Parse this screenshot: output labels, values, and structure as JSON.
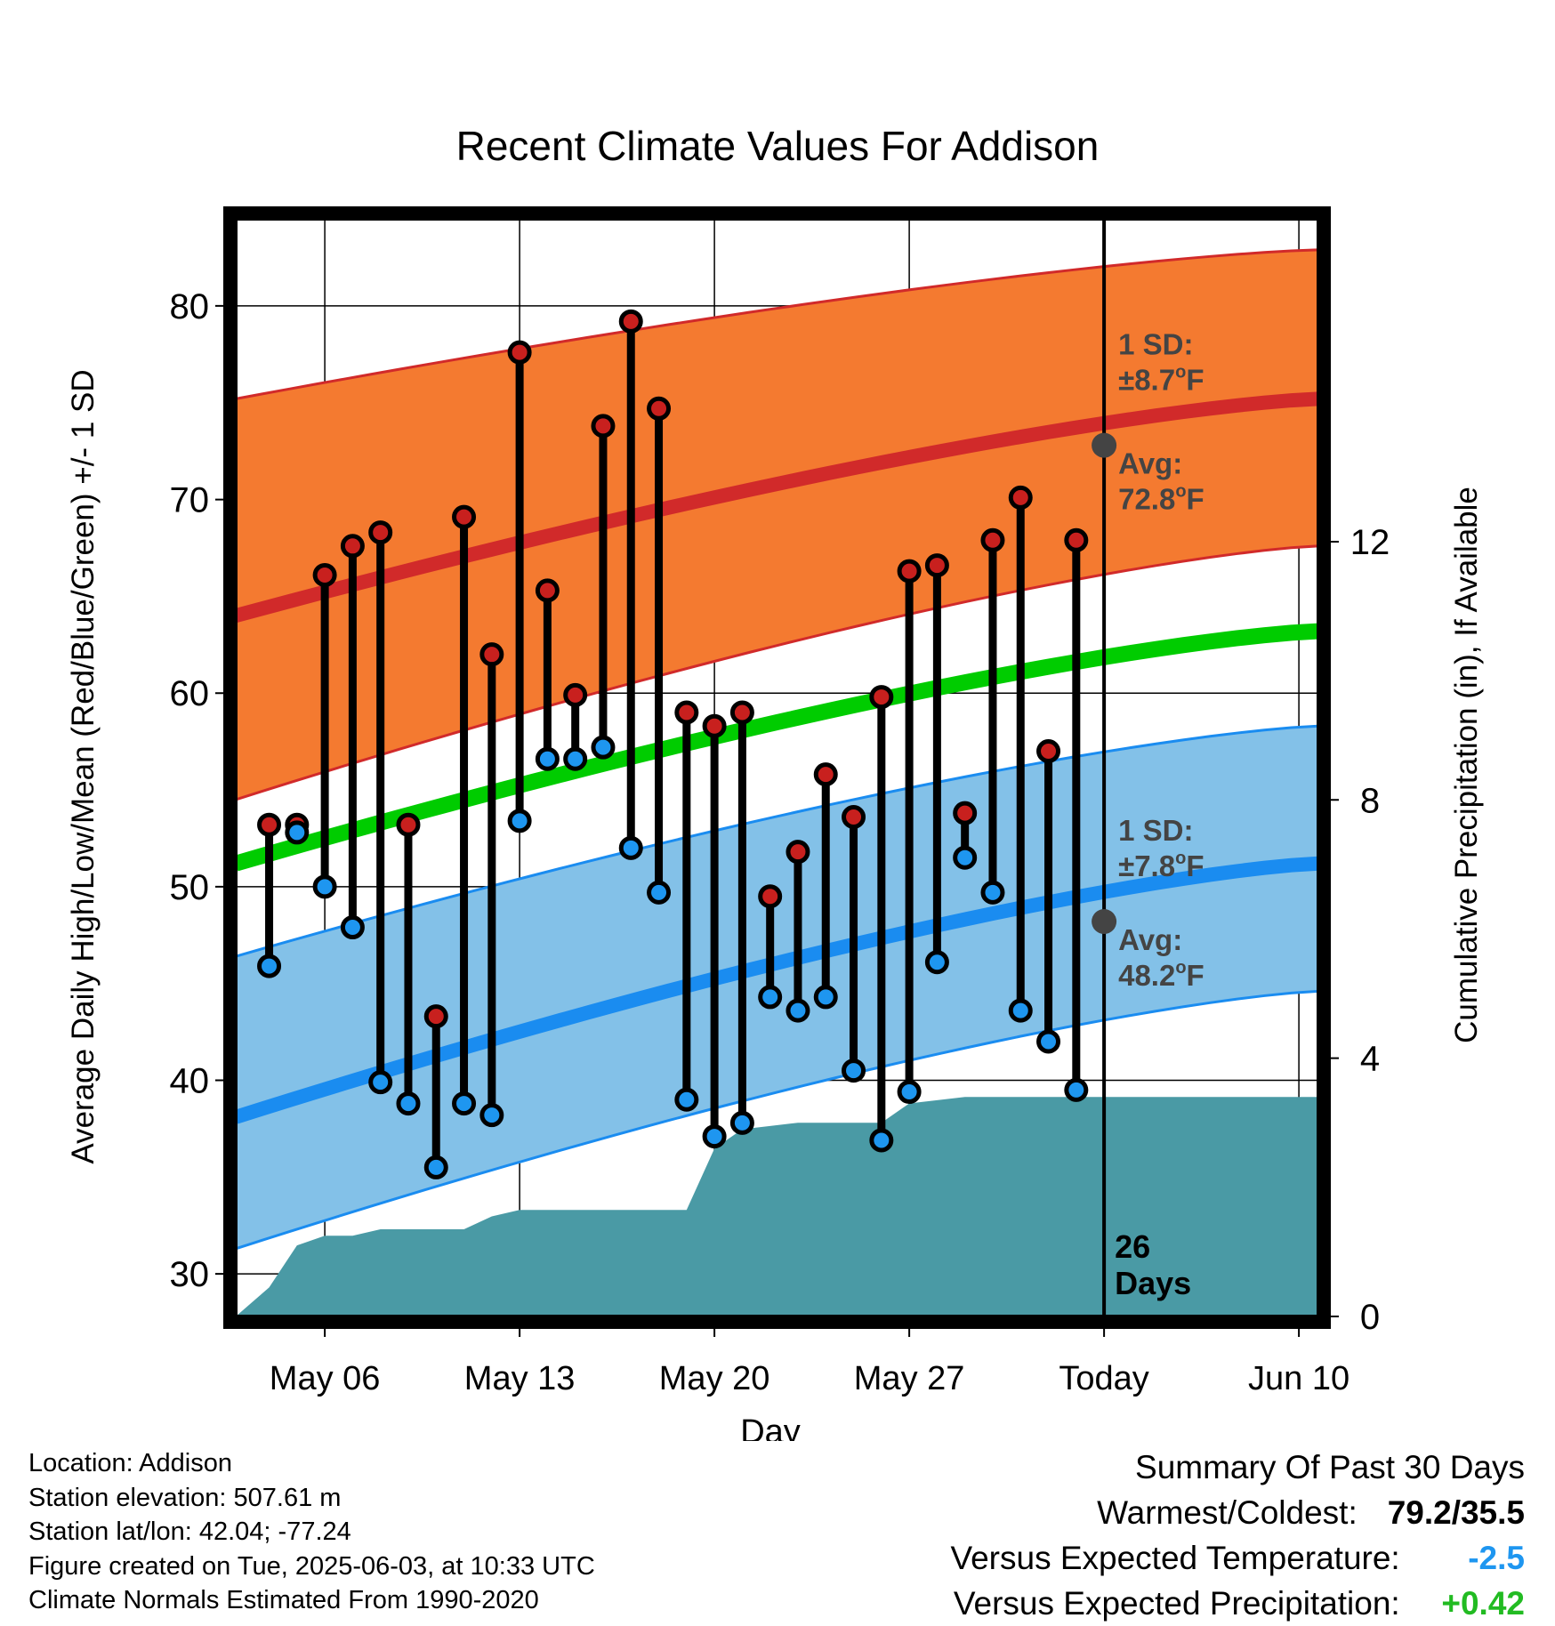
{
  "chart_data": {
    "type": "line",
    "title": "Recent Climate Values For Addison",
    "xlabel": "Day",
    "ylabel": "Average Daily High/Low/Mean (Red/Blue/Green) +/- 1 SD",
    "y2label": "Cumulative Precipitation (in), If Available",
    "ylim": [
      27.8,
      84.5
    ],
    "y2lim": [
      0,
      17
    ],
    "xlim": [
      2.8,
      41.7
    ],
    "yticks": [
      30,
      40,
      50,
      60,
      70,
      80
    ],
    "y2ticks": [
      0,
      4,
      8,
      12
    ],
    "xticks": [
      {
        "day": 6,
        "label": "May 06"
      },
      {
        "day": 13,
        "label": "May 13"
      },
      {
        "day": 20,
        "label": "May 20"
      },
      {
        "day": 27,
        "label": "May 27"
      },
      {
        "day": 34,
        "label": "Today"
      },
      {
        "day": 41,
        "label": "Jun 10"
      }
    ],
    "grid": true,
    "today_day": 34,
    "today_label_line1": "26",
    "today_label_line2": "Days",
    "normal_high": {
      "start": 64.0,
      "end": 75.2,
      "sd_upper_start": 75.2,
      "sd_upper_end": 82.9,
      "sd_lower_start": 54.5,
      "sd_lower_end": 67.6
    },
    "normal_low": {
      "start": 38.1,
      "end": 51.2,
      "sd_upper_start": 46.4,
      "sd_upper_end": 58.3,
      "sd_lower_start": 31.3,
      "sd_lower_end": 44.6
    },
    "normal_mean": {
      "start": 51.2,
      "end": 63.2
    },
    "colors": {
      "high_band": "#f47a30",
      "high_line": "#d12a2a",
      "low_band": "#83c1e8",
      "low_line": "#1a8cf0",
      "mean_line": "#00cc00",
      "precip": "#4a9aa5",
      "high_dot": "#c8201e",
      "low_dot": "#1e96f0",
      "avg_marker": "#444444"
    },
    "annotations": {
      "high_sd": {
        "line1": "1 SD:",
        "line2": "±8.7",
        "unit": "F",
        "y": 77.5
      },
      "high_avg": {
        "line1": "Avg:",
        "line2": "72.8",
        "unit": "F",
        "y": 72.8
      },
      "low_sd": {
        "line1": "1 SD:",
        "line2": "±7.8",
        "unit": "F",
        "y": 53.3
      },
      "low_avg": {
        "line1": "Avg:",
        "line2": "48.2",
        "unit": "F",
        "y": 48.2
      }
    },
    "series": [
      {
        "name": "High",
        "x": [
          5,
          6,
          7,
          8,
          9,
          10,
          11,
          12,
          13,
          14,
          15,
          16,
          17,
          18,
          19,
          20,
          21,
          22,
          23,
          24,
          25,
          26,
          27,
          28,
          29,
          30,
          31,
          32,
          33
        ],
        "values": [
          53.2,
          66.1,
          67.6,
          68.3,
          53.2,
          43.3,
          69.1,
          62.0,
          77.6,
          65.3,
          59.9,
          73.8,
          79.2,
          74.7,
          59.0,
          58.3,
          59.0,
          49.5,
          51.8,
          55.8,
          53.6,
          59.8,
          66.3,
          66.6,
          53.8,
          67.9,
          70.1,
          57.0,
          67.9
        ]
      },
      {
        "name": "Low",
        "x": [
          4,
          5,
          6,
          7,
          8,
          9,
          10,
          11,
          12,
          13,
          14,
          15,
          16,
          17,
          18,
          19,
          20,
          21,
          22,
          23,
          24,
          25,
          26,
          27,
          28,
          29,
          30,
          31,
          32,
          33
        ],
        "values": [
          45.9,
          52.8,
          50.0,
          47.9,
          39.9,
          38.8,
          35.5,
          38.8,
          38.2,
          53.4,
          56.6,
          56.6,
          57.2,
          52.0,
          49.7,
          39.0,
          37.1,
          37.8,
          44.3,
          43.6,
          44.3,
          40.5,
          36.9,
          39.4,
          46.1,
          51.5,
          49.7,
          43.6,
          42.0,
          39.5
        ]
      },
      {
        "name": "Cumulative Precipitation",
        "x": [
          2.8,
          4,
          5,
          6,
          7,
          8,
          9,
          10,
          11,
          12,
          13,
          14,
          15,
          16,
          17,
          18,
          19,
          20,
          21,
          22,
          23,
          24,
          25,
          26,
          27,
          28,
          29,
          30,
          31,
          32,
          33,
          34,
          41.7
        ],
        "values": [
          0,
          0.45,
          1.1,
          1.25,
          1.25,
          1.35,
          1.35,
          1.35,
          1.35,
          1.55,
          1.65,
          1.65,
          1.65,
          1.65,
          1.65,
          1.65,
          1.65,
          2.6,
          2.9,
          2.95,
          3.0,
          3.0,
          3.0,
          3.0,
          3.3,
          3.35,
          3.4,
          3.4,
          3.4,
          3.4,
          3.4,
          3.4,
          3.4
        ]
      }
    ],
    "high_pairs": [
      [
        4,
        53.2
      ]
    ]
  },
  "footer": {
    "location": "Location: Addison",
    "elevation": "Station elevation: 507.61 m",
    "latlon": "Station lat/lon: 42.04; -77.24",
    "created": "Figure created on Tue, 2025-06-03, at 10:33 UTC",
    "normals": "Climate Normals Estimated From 1990-2020"
  },
  "summary": {
    "heading": "Summary Of Past 30 Days",
    "warm_label": "Warmest/Coldest:",
    "warm_value": "79.2/35.5",
    "temp_label": "Versus Expected Temperature:",
    "temp_value": "-2.5",
    "temp_color": "#1e96f0",
    "precip_label": "Versus Expected Precipitation:",
    "precip_value": "+0.42",
    "precip_color": "#22bb22"
  }
}
